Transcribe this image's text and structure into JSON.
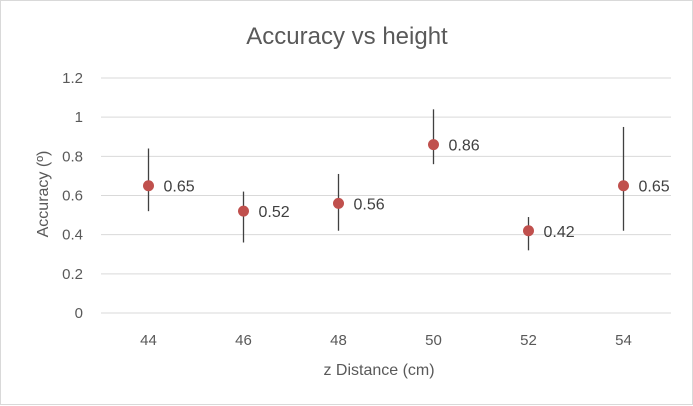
{
  "chart_data": {
    "type": "scatter",
    "title": "Accuracy vs height",
    "xlabel": "z Distance (cm)",
    "ylabel": "Accuracy (º)",
    "x": [
      44,
      46,
      48,
      50,
      52,
      54
    ],
    "y": [
      0.65,
      0.52,
      0.56,
      0.86,
      0.42,
      0.65
    ],
    "data_labels": [
      "0.65",
      "0.52",
      "0.56",
      "0.86",
      "0.42",
      "0.65"
    ],
    "error_low": [
      0.52,
      0.36,
      0.42,
      0.76,
      0.32,
      0.42
    ],
    "error_high": [
      0.84,
      0.62,
      0.71,
      1.04,
      0.49,
      0.95
    ],
    "x_ticks": [
      "44",
      "46",
      "48",
      "50",
      "52",
      "54"
    ],
    "y_ticks": [
      "0",
      "0.2",
      "0.4",
      "0.6",
      "0.8",
      "1",
      "1.2"
    ],
    "ylim": [
      0,
      1.2
    ],
    "xlim": [
      43,
      55
    ],
    "grid": true,
    "legend": false,
    "marker_color": "#c0504d"
  }
}
